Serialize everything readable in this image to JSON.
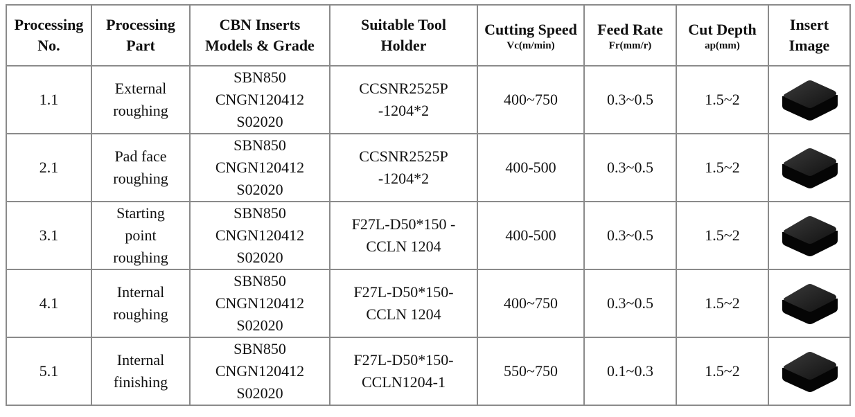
{
  "header": [
    {
      "title": "Processing\nNo."
    },
    {
      "title": "Processing\nPart"
    },
    {
      "title": "CBN Inserts\nModels & Grade"
    },
    {
      "title": "Suitable Tool\nHolder"
    },
    {
      "title": "Cutting Speed",
      "sub": "Vc(m/min)"
    },
    {
      "title": "Feed Rate",
      "sub": "Fr(mm/r)"
    },
    {
      "title": "Cut Depth",
      "sub": "ap(mm)"
    },
    {
      "title": "Insert\nImage"
    }
  ],
  "rows": [
    [
      "1.1",
      "External\nroughing",
      "SBN850\nCNGN120412\nS02020",
      "CCSNR2525P\n-1204*2",
      "400~750",
      "0.3~0.5",
      "1.5~2"
    ],
    [
      "2.1",
      "Pad face\nroughing",
      "SBN850\nCNGN120412\nS02020",
      "CCSNR2525P\n-1204*2",
      "400-500",
      "0.3~0.5",
      "1.5~2"
    ],
    [
      "3.1",
      "Starting\npoint\nroughing",
      "SBN850\nCNGN120412\nS02020",
      "F27L-D50*150 -\nCCLN 1204",
      "400-500",
      "0.3~0.5",
      "1.5~2"
    ],
    [
      "4.1",
      "Internal\nroughing",
      "SBN850\nCNGN120412\nS02020",
      "F27L-D50*150-\nCCLN 1204",
      "400~750",
      "0.3~0.5",
      "1.5~2"
    ],
    [
      "5.1",
      "Internal\nfinishing",
      "SBN850\nCNGN120412\nS02020",
      "F27L-D50*150-\nCCLN1204-1",
      "550~750",
      "0.1~0.3",
      "1.5~2"
    ]
  ]
}
